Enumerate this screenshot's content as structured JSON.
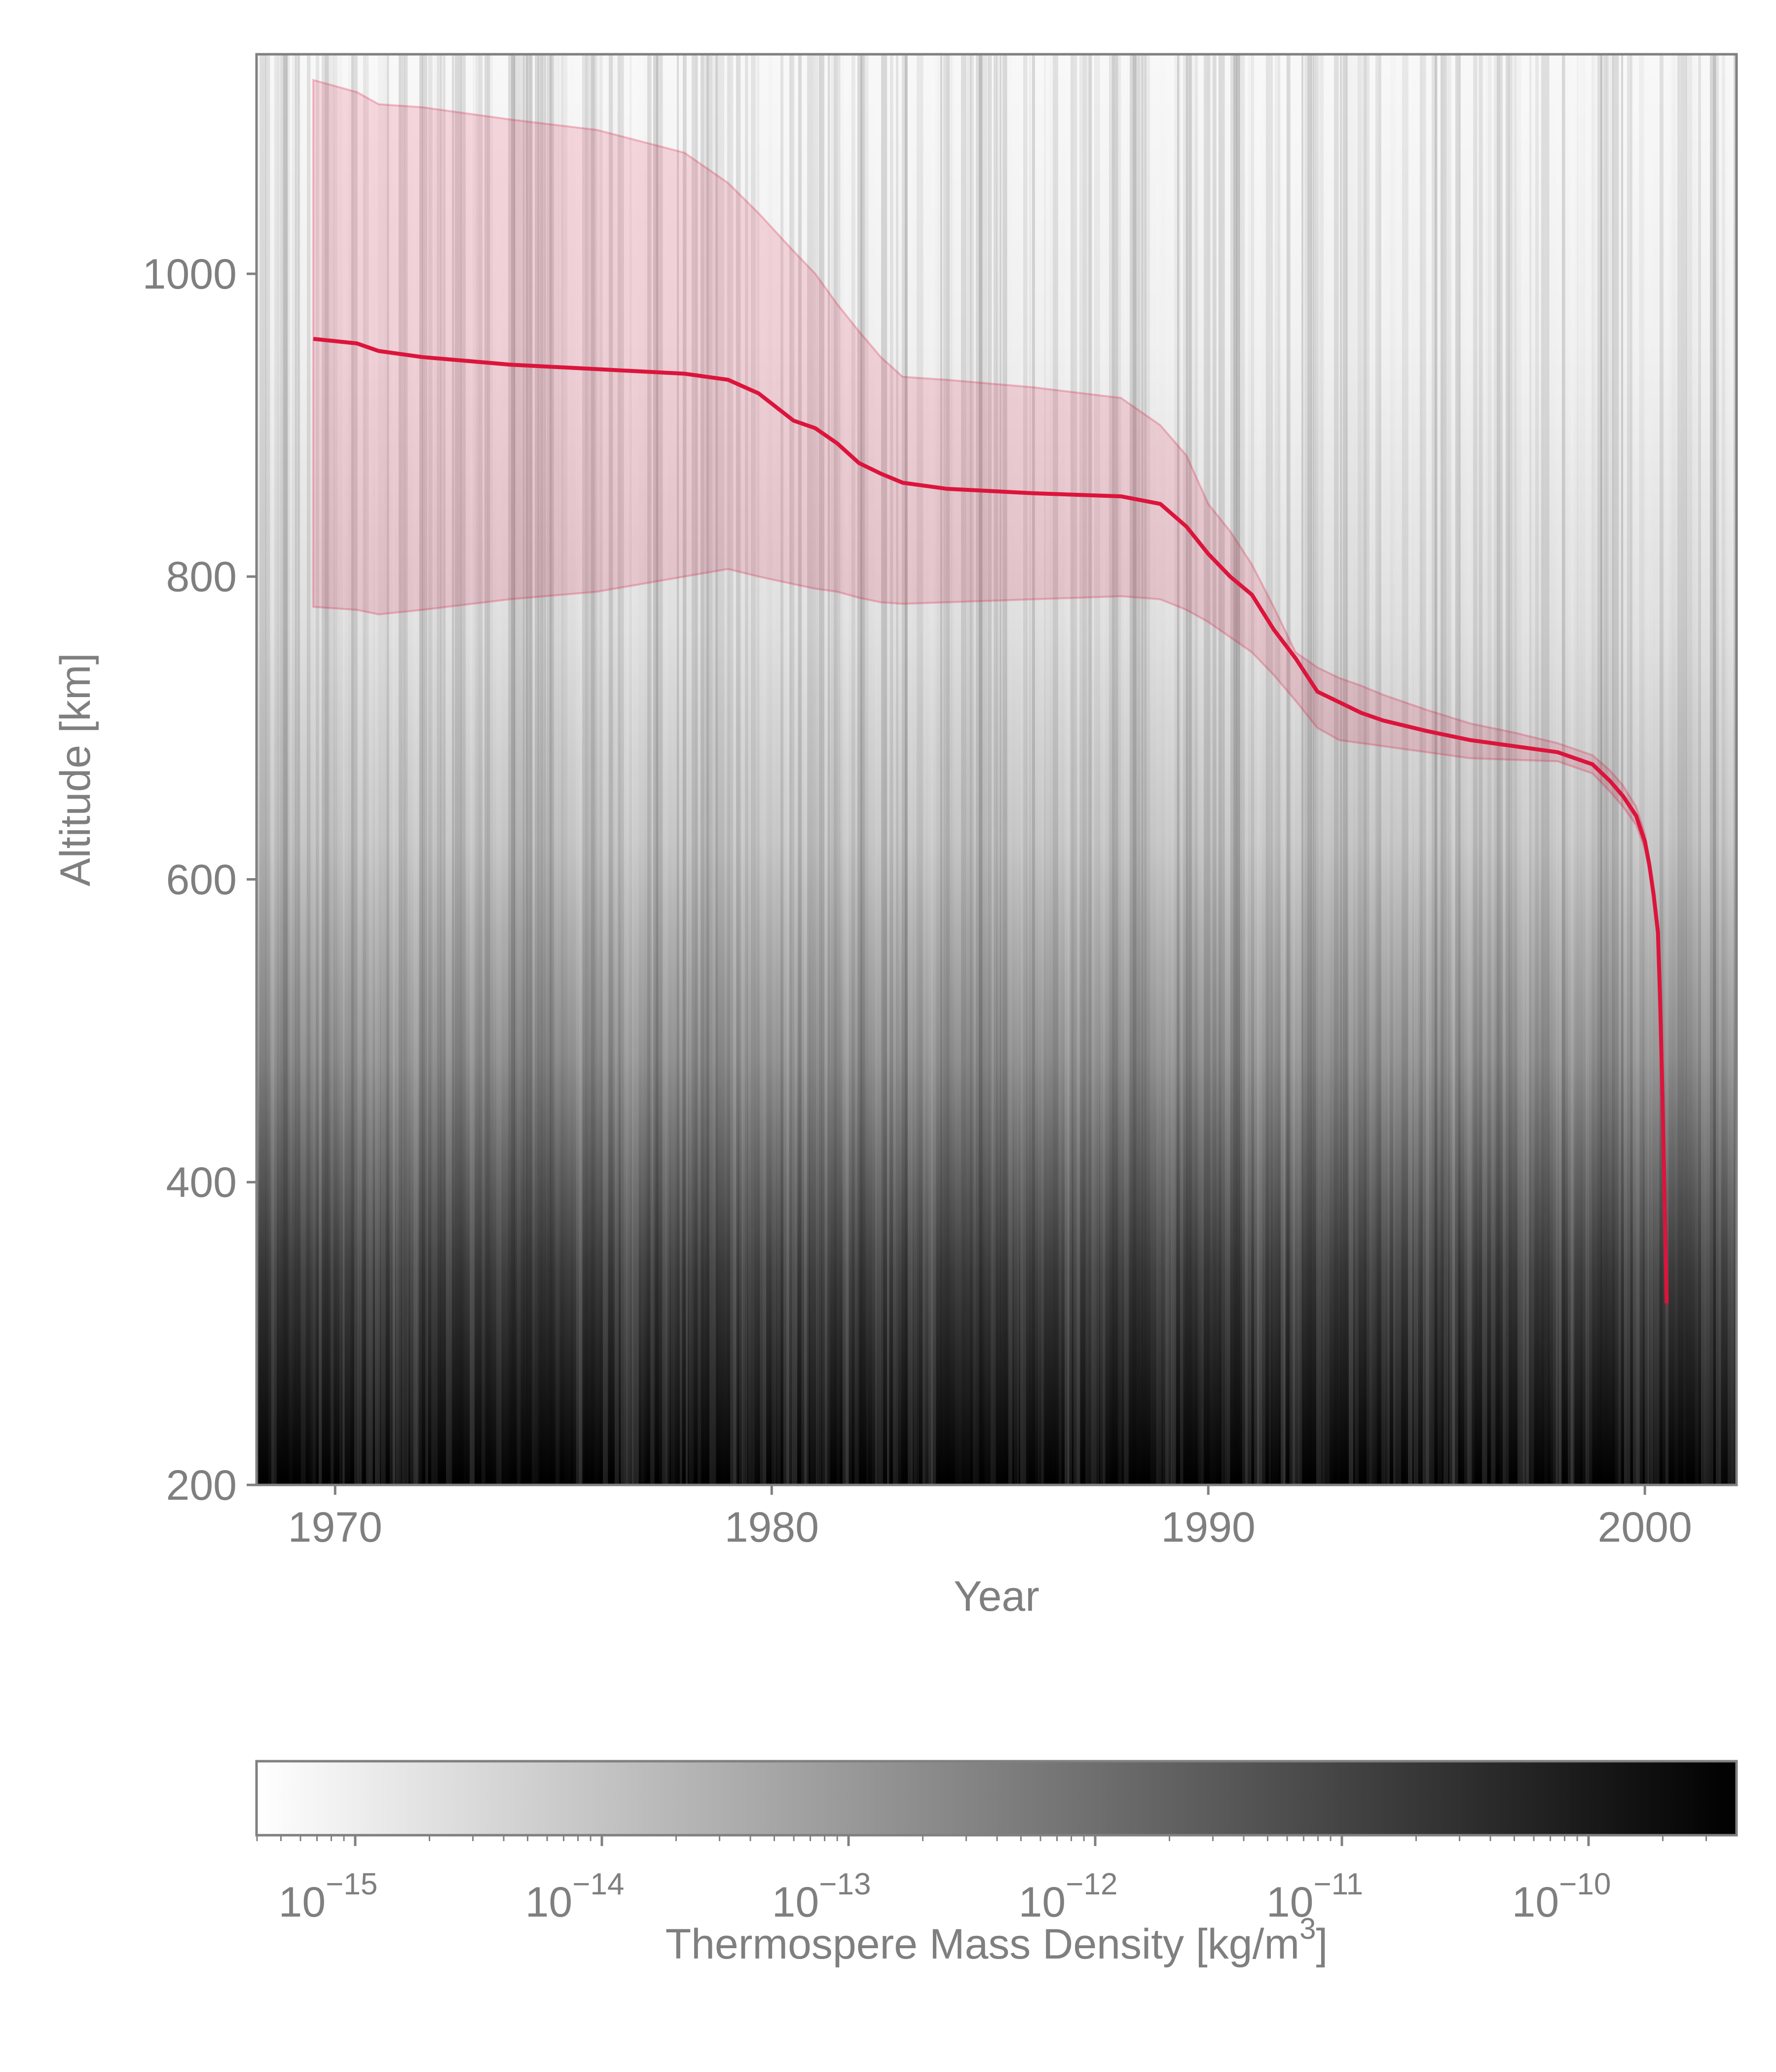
{
  "chart_data": {
    "type": "heatmap",
    "x_axis": {
      "label": "Year",
      "range": [
        1968.2,
        2002.1
      ],
      "ticks": [
        1970,
        1980,
        1990,
        2000
      ],
      "tick_labels": [
        "1970",
        "1980",
        "1990",
        "2000"
      ]
    },
    "y_axis": {
      "label": "Altitude [km]",
      "range": [
        200,
        1145
      ],
      "ticks": [
        200,
        400,
        600,
        800,
        1000
      ],
      "tick_labels": [
        "200",
        "400",
        "600",
        "800",
        "1000"
      ]
    },
    "background": {
      "description_value": "Thermospere Mass Density vs Year and Altitude",
      "colormap": "greys",
      "min_color": "#ffffff",
      "max_color": "#000000"
    },
    "colorbar": {
      "label": "Thermospere Mass Density [kg/m",
      "label_exponent": "3",
      "label_suffix": "]",
      "scale": "log",
      "range_log10": [
        -15.4,
        -9.4
      ],
      "ticks_log10": [
        -15,
        -14,
        -13,
        -12,
        -11,
        -10
      ],
      "tick_base": "10",
      "tick_exponents": [
        "−15",
        "−14",
        "−13",
        "−12",
        "−11",
        "−10"
      ]
    },
    "series": [
      {
        "type": "line",
        "color": "#dc143c",
        "x": [
          1969.5,
          1970.5,
          1971,
          1972,
          1974,
          1976,
          1978,
          1979,
          1979.7,
          1980.5,
          1981,
          1981.5,
          1982,
          1982.5,
          1983,
          1984,
          1986,
          1988,
          1988.9,
          1989.5,
          1990,
          1990.5,
          1991,
          1991.5,
          1992,
          1992.5,
          1993,
          1993.5,
          1994,
          1995,
          1996,
          1997,
          1998,
          1998.8,
          1999.2,
          1999.5,
          1999.8,
          2000.0,
          2000.1,
          2000.2,
          2000.3,
          2000.35,
          2000.4,
          2000.45,
          2000.5
        ],
        "y": [
          957,
          954,
          949,
          945,
          940,
          937,
          934,
          930,
          921,
          903,
          898,
          888,
          875,
          868,
          862,
          858,
          855,
          853,
          848,
          833,
          815,
          800,
          788,
          765,
          746,
          724,
          717,
          710,
          705,
          698,
          692,
          688,
          684,
          676,
          665,
          655,
          642,
          625,
          610,
          590,
          565,
          520,
          460,
          390,
          320
        ]
      },
      {
        "type": "band",
        "color": "#dc143c",
        "opacity": 0.15,
        "x": [
          1969.5,
          1970.5,
          1971,
          1972,
          1974,
          1976,
          1978,
          1979,
          1979.7,
          1980.5,
          1981,
          1981.5,
          1982,
          1982.5,
          1983,
          1984,
          1986,
          1988,
          1988.9,
          1989.5,
          1990,
          1990.5,
          1991,
          1991.5,
          1992,
          1992.5,
          1993,
          1993.5,
          1994,
          1995,
          1996,
          1997,
          1998,
          1998.8,
          1999.2,
          1999.5,
          1999.8,
          2000.0,
          2000.1,
          2000.2,
          2000.3,
          2000.35,
          2000.4,
          2000.45,
          2000.5
        ],
        "upper": [
          1128,
          1120,
          1112,
          1110,
          1102,
          1095,
          1080,
          1060,
          1040,
          1015,
          1000,
          980,
          962,
          945,
          932,
          930,
          925,
          918,
          900,
          880,
          848,
          830,
          808,
          780,
          750,
          740,
          733,
          728,
          722,
          712,
          703,
          697,
          690,
          682,
          672,
          662,
          648,
          630,
          614,
          594,
          569,
          524,
          464,
          394,
          324
        ],
        "lower": [
          780,
          778,
          775,
          778,
          785,
          790,
          800,
          805,
          800,
          795,
          792,
          790,
          786,
          783,
          782,
          783,
          785,
          787,
          785,
          778,
          770,
          760,
          750,
          735,
          718,
          700,
          692,
          690,
          688,
          684,
          680,
          679,
          678,
          670,
          658,
          648,
          636,
          620,
          606,
          586,
          561,
          516,
          456,
          386,
          316
        ]
      }
    ]
  }
}
